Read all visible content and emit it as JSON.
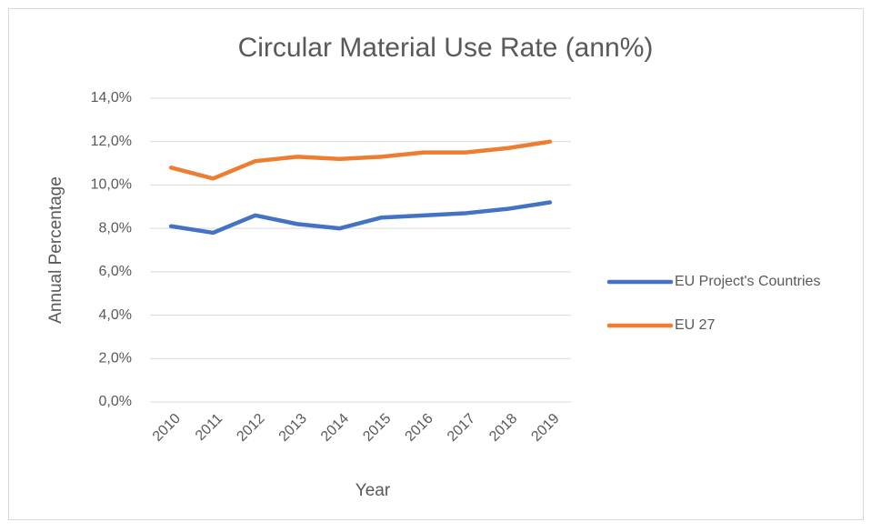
{
  "chart_data": {
    "type": "line",
    "title": "Circular Material Use Rate (ann%)",
    "x_label": "Year",
    "y_label": "Annual Percentage",
    "categories": [
      "2010",
      "2011",
      "2012",
      "2013",
      "2014",
      "2015",
      "2016",
      "2017",
      "2018",
      "2019"
    ],
    "series": [
      {
        "name": "EU Project's Countries",
        "color": "#4472c4",
        "values": [
          8.1,
          7.8,
          8.6,
          8.2,
          8.0,
          8.5,
          8.6,
          8.7,
          8.9,
          9.2
        ]
      },
      {
        "name": "EU 27",
        "color": "#ed7d31",
        "values": [
          10.8,
          10.3,
          11.1,
          11.3,
          11.2,
          11.3,
          11.5,
          11.5,
          11.7,
          12.0
        ]
      }
    ],
    "ylim": [
      0,
      14
    ],
    "yticks": [
      {
        "value": 0,
        "label": "0,0%"
      },
      {
        "value": 2,
        "label": "2,0%"
      },
      {
        "value": 4,
        "label": "4,0%"
      },
      {
        "value": 6,
        "label": "6,0%"
      },
      {
        "value": 8,
        "label": "8,0%"
      },
      {
        "value": 10,
        "label": "10,0%"
      },
      {
        "value": 12,
        "label": "12,0%"
      },
      {
        "value": 14,
        "label": "14,0%"
      }
    ],
    "grid": true,
    "legend": "right"
  }
}
